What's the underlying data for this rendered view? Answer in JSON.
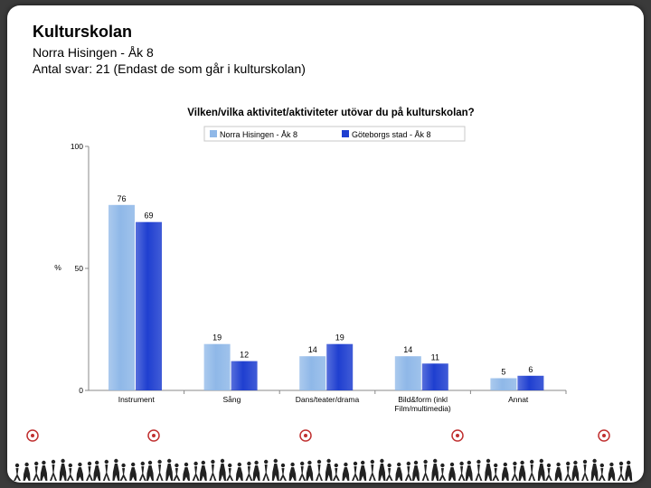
{
  "header": {
    "title": "Kulturskolan",
    "subtitle1": "Norra Hisingen - Åk 8",
    "subtitle2": "Antal svar: 21 (Endast de som går i kulturskolan)"
  },
  "chart_data": {
    "type": "bar",
    "title": "Vilken/vilka aktivitet/aktiviteter utövar du på kulturskolan?",
    "ylabel": "%",
    "xlabel": "",
    "ylim": [
      0,
      100
    ],
    "yticks": [
      0,
      50,
      100
    ],
    "categories": [
      "Instrument",
      "Sång",
      "Dans/teater/drama",
      "Bild&form (inkl Film/multimedia)",
      "Annat"
    ],
    "category_lines": [
      [
        "Instrument"
      ],
      [
        "Sång"
      ],
      [
        "Dans/teater/drama"
      ],
      [
        "Bild&form (inkl",
        "Film/multimedia)"
      ],
      [
        "Annat"
      ]
    ],
    "series": [
      {
        "name": "Norra Hisingen - Åk 8",
        "values": [
          76,
          19,
          14,
          14,
          5
        ],
        "color": "#8fb8e8"
      },
      {
        "name": "Göteborgs stad - Åk 8",
        "values": [
          69,
          12,
          19,
          11,
          6
        ],
        "color": "#1f3fd0"
      }
    ],
    "legend_position": "top",
    "grid": false
  }
}
